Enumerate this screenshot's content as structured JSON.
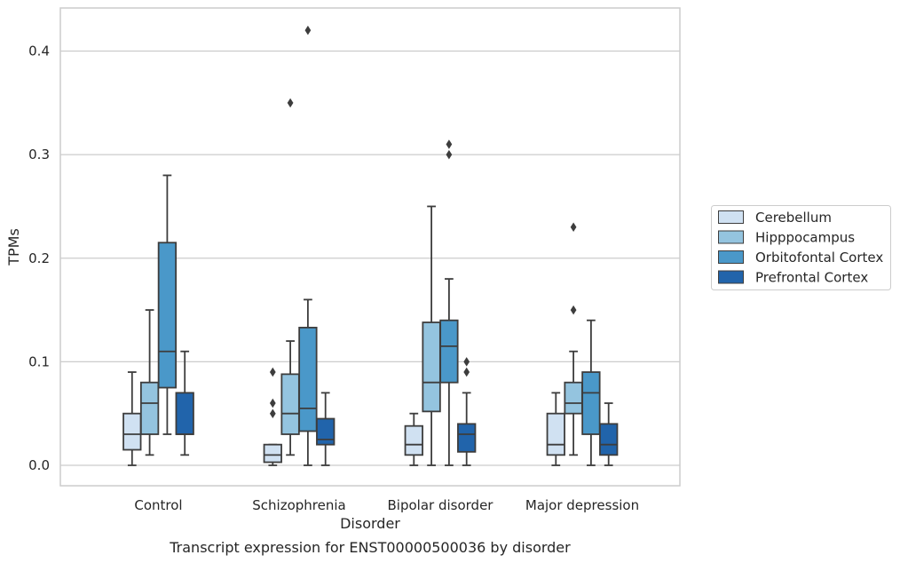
{
  "chart_data": {
    "type": "box",
    "caption": "Transcript expression for ENST00000500036 by disorder",
    "xlabel": "Disorder",
    "ylabel": "TPMs",
    "ylim": [
      -0.02,
      0.44
    ],
    "yticks": [
      0.0,
      0.1,
      0.2,
      0.3,
      0.4
    ],
    "ytick_labels": [
      "0.0",
      "0.1",
      "0.2",
      "0.3",
      "0.4"
    ],
    "grid": "horizontal",
    "legend_position": "right",
    "categories": [
      "Control",
      "Schizophrenia",
      "Bipolar disorder",
      "Major depression"
    ],
    "series": [
      {
        "name": "Cerebellum",
        "color": "#d0e1f2",
        "boxes": [
          {
            "whislo": 0.0,
            "q1": 0.015,
            "med": 0.03,
            "q3": 0.05,
            "whishi": 0.09,
            "fliers": []
          },
          {
            "whislo": 0.0,
            "q1": 0.003,
            "med": 0.01,
            "q3": 0.02,
            "whishi": 0.02,
            "fliers": [
              0.05,
              0.06,
              0.09
            ]
          },
          {
            "whislo": 0.0,
            "q1": 0.01,
            "med": 0.02,
            "q3": 0.038,
            "whishi": 0.05,
            "fliers": []
          },
          {
            "whislo": 0.0,
            "q1": 0.01,
            "med": 0.02,
            "q3": 0.05,
            "whishi": 0.07,
            "fliers": []
          }
        ]
      },
      {
        "name": "Hipppocampus",
        "color": "#94c4df",
        "boxes": [
          {
            "whislo": 0.01,
            "q1": 0.03,
            "med": 0.06,
            "q3": 0.08,
            "whishi": 0.15,
            "fliers": []
          },
          {
            "whislo": 0.01,
            "q1": 0.03,
            "med": 0.05,
            "q3": 0.088,
            "whishi": 0.12,
            "fliers": [
              0.35
            ]
          },
          {
            "whislo": 0.0,
            "q1": 0.052,
            "med": 0.08,
            "q3": 0.138,
            "whishi": 0.25,
            "fliers": []
          },
          {
            "whislo": 0.01,
            "q1": 0.05,
            "med": 0.06,
            "q3": 0.08,
            "whishi": 0.11,
            "fliers": [
              0.15,
              0.23
            ]
          }
        ]
      },
      {
        "name": "Orbitofontal Cortex",
        "color": "#4a98c9",
        "boxes": [
          {
            "whislo": 0.03,
            "q1": 0.075,
            "med": 0.11,
            "q3": 0.215,
            "whishi": 0.28,
            "fliers": []
          },
          {
            "whislo": 0.0,
            "q1": 0.033,
            "med": 0.055,
            "q3": 0.133,
            "whishi": 0.16,
            "fliers": [
              0.42
            ]
          },
          {
            "whislo": 0.0,
            "q1": 0.08,
            "med": 0.115,
            "q3": 0.14,
            "whishi": 0.18,
            "fliers": [
              0.3,
              0.31
            ]
          },
          {
            "whislo": 0.0,
            "q1": 0.03,
            "med": 0.07,
            "q3": 0.09,
            "whishi": 0.14,
            "fliers": []
          }
        ]
      },
      {
        "name": "Prefrontal Cortex",
        "color": "#2164ab",
        "boxes": [
          {
            "whislo": 0.01,
            "q1": 0.03,
            "med": 0.03,
            "q3": 0.07,
            "whishi": 0.11,
            "fliers": []
          },
          {
            "whislo": 0.0,
            "q1": 0.02,
            "med": 0.025,
            "q3": 0.045,
            "whishi": 0.07,
            "fliers": []
          },
          {
            "whislo": 0.0,
            "q1": 0.013,
            "med": 0.03,
            "q3": 0.04,
            "whishi": 0.07,
            "fliers": [
              0.09,
              0.1
            ]
          },
          {
            "whislo": 0.0,
            "q1": 0.01,
            "med": 0.02,
            "q3": 0.04,
            "whishi": 0.06,
            "fliers": []
          }
        ]
      }
    ]
  }
}
